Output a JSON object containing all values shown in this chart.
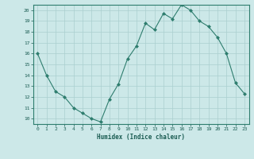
{
  "x": [
    0,
    1,
    2,
    3,
    4,
    5,
    6,
    7,
    8,
    9,
    10,
    11,
    12,
    13,
    14,
    15,
    16,
    17,
    18,
    19,
    20,
    21,
    22,
    23
  ],
  "y": [
    16,
    14,
    12.5,
    12,
    11,
    10.5,
    10,
    9.7,
    11.8,
    13.2,
    15.5,
    16.7,
    18.8,
    18.2,
    19.7,
    19.2,
    20.5,
    20,
    19,
    18.5,
    17.5,
    16,
    13.3,
    12.3
  ],
  "title": "",
  "xlabel": "Humidex (Indice chaleur)",
  "ylabel": "",
  "xlim": [
    -0.5,
    23.5
  ],
  "ylim": [
    9.5,
    20.5
  ],
  "yticks": [
    10,
    11,
    12,
    13,
    14,
    15,
    16,
    17,
    18,
    19,
    20
  ],
  "xticks": [
    0,
    1,
    2,
    3,
    4,
    5,
    6,
    7,
    8,
    9,
    10,
    11,
    12,
    13,
    14,
    15,
    16,
    17,
    18,
    19,
    20,
    21,
    22,
    23
  ],
  "line_color": "#2e7d6e",
  "marker_color": "#2e7d6e",
  "bg_color": "#cce8e8",
  "grid_color": "#aacfcf",
  "label_color": "#1a5c52",
  "tick_color": "#1a5c52",
  "axis_color": "#2e7d6e"
}
